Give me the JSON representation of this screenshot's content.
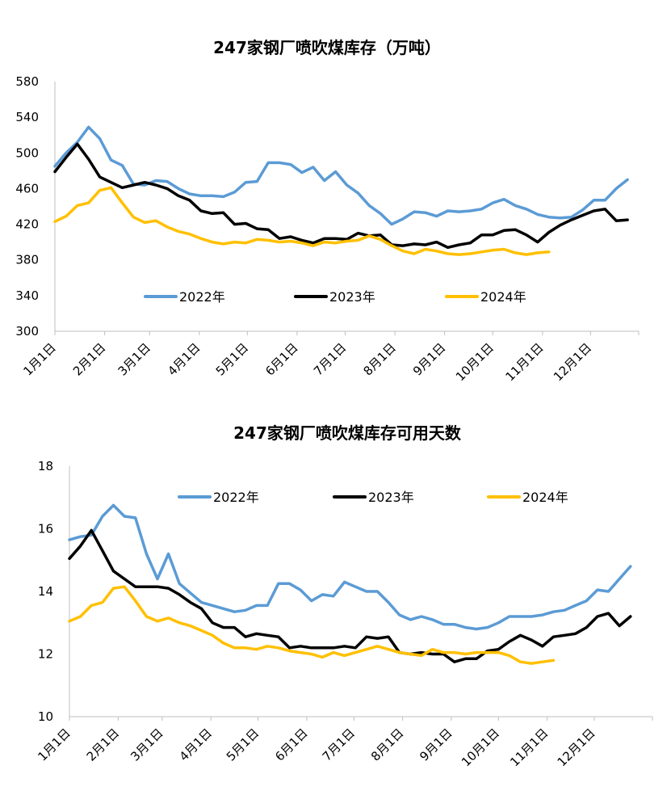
{
  "chart_data": [
    {
      "type": "line",
      "title": "247家钢厂喷吹煤库存（万吨）",
      "xlabel": "",
      "ylabel": "",
      "ylim": [
        300,
        580
      ],
      "yticks": [
        "300",
        "340",
        "380",
        "420",
        "460",
        "500",
        "540",
        "580"
      ],
      "xticks": [
        "1月1日",
        "2月1日",
        "3月1日",
        "4月1日",
        "5月1日",
        "6月1日",
        "7月1日",
        "8月1日",
        "9月1日",
        "10月1日",
        "11月1日",
        "12月1日"
      ],
      "xlim": [
        0,
        52
      ],
      "grid": false,
      "legend": "inside-bottom",
      "series": [
        {
          "name": "2022年",
          "color": "#5B9BD5",
          "values": [
            485,
            500,
            512,
            529,
            516,
            492,
            486,
            465,
            464,
            469,
            468,
            460,
            454,
            452,
            452,
            451,
            456,
            467,
            468,
            489,
            489,
            487,
            478,
            484,
            469,
            479,
            464,
            455,
            441,
            432,
            420,
            426,
            434,
            433,
            429,
            435,
            434,
            435,
            437,
            444,
            448,
            441,
            437,
            431,
            428,
            427,
            428,
            436,
            447,
            447,
            460,
            470
          ]
        },
        {
          "name": "2023年",
          "color": "#000000",
          "values": [
            479,
            495,
            510,
            493,
            473,
            467,
            461,
            464,
            467,
            464,
            460,
            452,
            447,
            435,
            432,
            433,
            420,
            421,
            415,
            414,
            404,
            406,
            402,
            399,
            404,
            404,
            403,
            410,
            407,
            408,
            397,
            396,
            398,
            397,
            400,
            394,
            397,
            399,
            408,
            408,
            413,
            414,
            408,
            400,
            411,
            419,
            425,
            430,
            435,
            437,
            424,
            425
          ]
        },
        {
          "name": "2024年",
          "color": "#FFC000",
          "values": [
            423,
            429,
            441,
            444,
            458,
            461,
            444,
            428,
            422,
            424,
            417,
            412,
            409,
            404,
            400,
            398,
            400,
            399,
            403,
            402,
            400,
            401,
            399,
            396,
            400,
            399,
            401,
            402,
            407,
            403,
            396,
            390,
            387,
            392,
            390,
            387,
            386,
            387,
            389,
            391,
            392,
            388,
            386,
            388,
            389
          ]
        }
      ]
    },
    {
      "type": "line",
      "title": "247家钢厂喷吹煤库存可用天数",
      "xlabel": "",
      "ylabel": "",
      "ylim": [
        10,
        18
      ],
      "yticks": [
        "10",
        "12",
        "14",
        "16",
        "18"
      ],
      "xticks": [
        "1月1日",
        "2月1日",
        "3月1日",
        "4月1日",
        "5月1日",
        "6月1日",
        "7月1日",
        "8月1日",
        "9月1日",
        "10月1日",
        "11月1日",
        "12月1日"
      ],
      "xlim": [
        0,
        53
      ],
      "grid": false,
      "legend": "top",
      "series": [
        {
          "name": "2022年",
          "color": "#5B9BD5",
          "values": [
            15.65,
            15.75,
            15.8,
            16.4,
            16.75,
            16.4,
            16.35,
            15.2,
            14.4,
            15.2,
            14.25,
            13.95,
            13.65,
            13.55,
            13.45,
            13.35,
            13.4,
            13.55,
            13.55,
            14.25,
            14.25,
            14.05,
            13.7,
            13.9,
            13.85,
            14.3,
            14.15,
            14.0,
            14.0,
            13.65,
            13.25,
            13.1,
            13.2,
            13.1,
            12.95,
            12.95,
            12.85,
            12.8,
            12.85,
            13.0,
            13.2,
            13.2,
            13.2,
            13.25,
            13.35,
            13.4,
            13.55,
            13.7,
            14.05,
            14.0,
            14.4,
            14.8
          ]
        },
        {
          "name": "2023年",
          "color": "#000000",
          "values": [
            15.05,
            15.45,
            15.95,
            15.3,
            14.65,
            14.4,
            14.15,
            14.15,
            14.15,
            14.1,
            13.9,
            13.65,
            13.45,
            13.0,
            12.85,
            12.85,
            12.55,
            12.65,
            12.6,
            12.55,
            12.2,
            12.25,
            12.2,
            12.2,
            12.2,
            12.25,
            12.2,
            12.55,
            12.5,
            12.55,
            12.05,
            12.0,
            12.05,
            12.0,
            12.0,
            11.75,
            11.85,
            11.85,
            12.1,
            12.15,
            12.4,
            12.6,
            12.45,
            12.25,
            12.55,
            12.6,
            12.65,
            12.85,
            13.2,
            13.3,
            12.9,
            13.2
          ]
        },
        {
          "name": "2024年",
          "color": "#FFC000",
          "values": [
            13.05,
            13.2,
            13.55,
            13.65,
            14.1,
            14.15,
            13.7,
            13.2,
            13.05,
            13.15,
            13.0,
            12.9,
            12.75,
            12.6,
            12.35,
            12.2,
            12.2,
            12.15,
            12.25,
            12.2,
            12.1,
            12.05,
            12.0,
            11.9,
            12.05,
            11.95,
            12.05,
            12.15,
            12.25,
            12.15,
            12.05,
            12.0,
            11.95,
            12.15,
            12.05,
            12.05,
            12.0,
            12.05,
            12.05,
            12.05,
            11.95,
            11.75,
            11.7,
            11.75,
            11.8
          ]
        }
      ]
    }
  ]
}
